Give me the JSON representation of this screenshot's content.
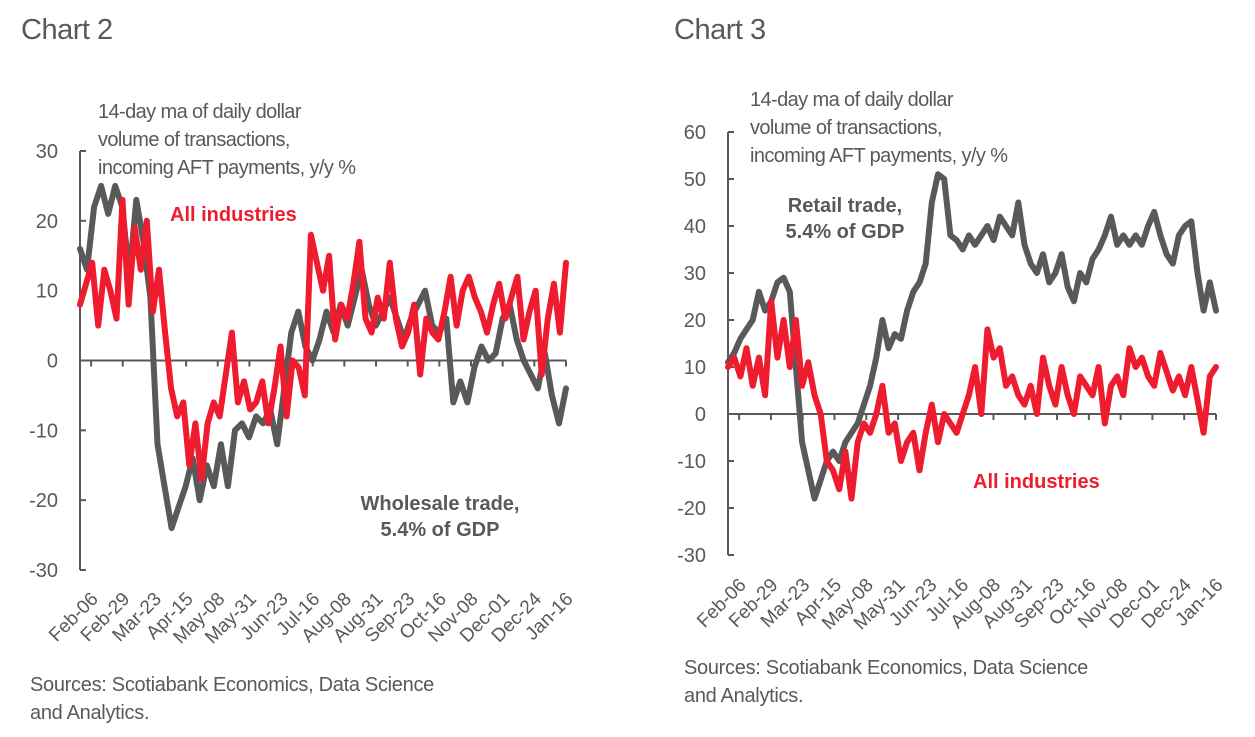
{
  "chart_data": [
    {
      "id": "chart2",
      "type": "line",
      "title": "Chart 2",
      "subtitle": [
        "14-day  ma of daily dollar",
        "volume of transactions,",
        "incoming AFT payments, y/y %"
      ],
      "xlabel": "",
      "ylabel": "14-day ma of daily dollar volume of transactions, incoming AFT payments, y/y %",
      "ylim": [
        -30,
        30
      ],
      "yticks": [
        30,
        20,
        10,
        0,
        -10,
        -20,
        -30
      ],
      "x_tick_labels": [
        "Feb-06",
        "Feb-29",
        "Mar-23",
        "Apr-15",
        "May-08",
        "May-31",
        "Jun-23",
        "Jul-16",
        "Aug-08",
        "Aug-31",
        "Sep-23",
        "Oct-16",
        "Nov-08",
        "Dec-01",
        "Dec-24",
        "Jan-16"
      ],
      "grid": false,
      "annotations": [
        {
          "text": "All industries",
          "color": "#ee1c2e",
          "position": "top-left"
        },
        {
          "text": "Wholesale trade,",
          "text2": "5.4% of GDP",
          "color": "#595959",
          "position": "bottom-right"
        }
      ],
      "series": [
        {
          "name": "Wholesale trade, 5.4% of GDP",
          "color": "#595959",
          "values": [
            16,
            13,
            22,
            25,
            21,
            25,
            22,
            12,
            23,
            17,
            9,
            -12,
            -18,
            -24,
            -21,
            -18,
            -14,
            -20,
            -15,
            -18,
            -12,
            -18,
            -10,
            -9,
            -11,
            -8,
            -9,
            -7,
            -12,
            -4,
            4,
            7,
            2,
            0,
            3,
            7,
            4,
            8,
            5,
            9,
            13,
            8,
            5,
            7,
            9,
            6,
            3,
            6,
            8,
            10,
            5,
            4,
            6,
            -6,
            -3,
            -6,
            -1,
            2,
            0,
            1,
            6,
            8,
            3,
            0,
            -2,
            -4,
            1,
            -5,
            -9,
            -4
          ]
        },
        {
          "name": "All industries",
          "color": "#ee1c2e",
          "values": [
            8,
            11,
            14,
            5,
            13,
            10,
            6,
            23,
            8,
            19,
            13,
            20,
            7,
            13,
            4,
            -4,
            -8,
            -6,
            -15,
            -9,
            -17,
            -9,
            -6,
            -8,
            -2,
            4,
            -6,
            -3,
            -7,
            -6,
            -3,
            -9,
            -4,
            2,
            -8,
            0,
            -1,
            -5,
            18,
            14,
            10,
            15,
            3,
            8,
            6,
            11,
            17,
            6,
            4,
            9,
            6,
            14,
            6,
            2,
            4,
            8,
            -2,
            6,
            4,
            3,
            7,
            12,
            5,
            10,
            12,
            9,
            7,
            4,
            8,
            11,
            6,
            9,
            12,
            3,
            7,
            10,
            -2,
            6,
            11,
            4,
            14
          ]
        }
      ]
    },
    {
      "id": "chart3",
      "type": "line",
      "title": "Chart 3",
      "subtitle": [
        "14-day  ma of daily dollar",
        "volume of transactions,",
        "incoming AFT payments, y/y %"
      ],
      "xlabel": "",
      "ylabel": "14-day ma of daily dollar volume of transactions, incoming AFT payments, y/y %",
      "ylim": [
        -30,
        60
      ],
      "yticks": [
        60,
        50,
        40,
        30,
        20,
        10,
        0,
        -10,
        -20,
        -30
      ],
      "x_tick_labels": [
        "Feb-06",
        "Feb-29",
        "Mar-23",
        "Apr-15",
        "May-08",
        "May-31",
        "Jun-23",
        "Jul-16",
        "Aug-08",
        "Aug-31",
        "Sep-23",
        "Oct-16",
        "Nov-08",
        "Dec-01",
        "Dec-24",
        "Jan-16"
      ],
      "grid": false,
      "annotations": [
        {
          "text": "Retail trade,",
          "text2": "5.4% of GDP",
          "color": "#595959",
          "position": "top-left"
        },
        {
          "text": "All industries",
          "color": "#ee1c2e",
          "position": "bottom-center"
        }
      ],
      "series": [
        {
          "name": "Retail trade, 5.4% of GDP",
          "color": "#595959",
          "values": [
            11,
            13,
            16,
            18,
            20,
            26,
            22,
            24,
            28,
            29,
            26,
            10,
            -6,
            -12,
            -18,
            -14,
            -10,
            -8,
            -10,
            -6,
            -4,
            -2,
            2,
            6,
            12,
            20,
            14,
            17,
            16,
            22,
            26,
            28,
            32,
            45,
            51,
            50,
            38,
            37,
            35,
            38,
            36,
            38,
            40,
            37,
            42,
            40,
            38,
            45,
            36,
            32,
            30,
            34,
            28,
            30,
            34,
            27,
            24,
            30,
            28,
            33,
            35,
            38,
            42,
            36,
            38,
            36,
            38,
            36,
            40,
            43,
            38,
            34,
            32,
            38,
            40,
            41,
            30,
            22,
            28,
            22
          ]
        },
        {
          "name": "All industries",
          "color": "#ee1c2e",
          "values": [
            10,
            12,
            8,
            14,
            6,
            12,
            4,
            24,
            12,
            20,
            10,
            20,
            6,
            11,
            4,
            0,
            -10,
            -12,
            -16,
            -8,
            -18,
            -6,
            -2,
            -4,
            0,
            6,
            -4,
            -2,
            -10,
            -6,
            -4,
            -12,
            -4,
            2,
            -6,
            0,
            -2,
            -4,
            0,
            4,
            10,
            0,
            18,
            12,
            14,
            6,
            8,
            4,
            2,
            6,
            0,
            12,
            6,
            2,
            10,
            4,
            0,
            8,
            6,
            4,
            10,
            -2,
            6,
            8,
            4,
            14,
            10,
            12,
            8,
            6,
            13,
            9,
            5,
            8,
            4,
            10,
            3,
            -4,
            8,
            10
          ]
        }
      ]
    }
  ],
  "charts": {
    "chart2": {
      "title": "Chart 2",
      "subtitle_lines": [
        "14-day  ma of daily dollar",
        "volume of transactions,",
        "incoming AFT payments, y/y %"
      ],
      "label_red": "All industries",
      "label_gray_line1": "Wholesale trade,",
      "label_gray_line2": "5.4% of GDP",
      "source_line1": "Sources: Scotiabank Economics, Data Science",
      "source_line2": "and Analytics."
    },
    "chart3": {
      "title": "Chart 3",
      "subtitle_lines": [
        "14-day  ma of daily dollar",
        "volume of transactions,",
        "incoming AFT payments, y/y %"
      ],
      "label_red": "All industries",
      "label_gray_line1": "Retail trade,",
      "label_gray_line2": "5.4% of GDP",
      "source_line1": "Sources: Scotiabank Economics, Data Science",
      "source_line2": "and Analytics."
    }
  }
}
